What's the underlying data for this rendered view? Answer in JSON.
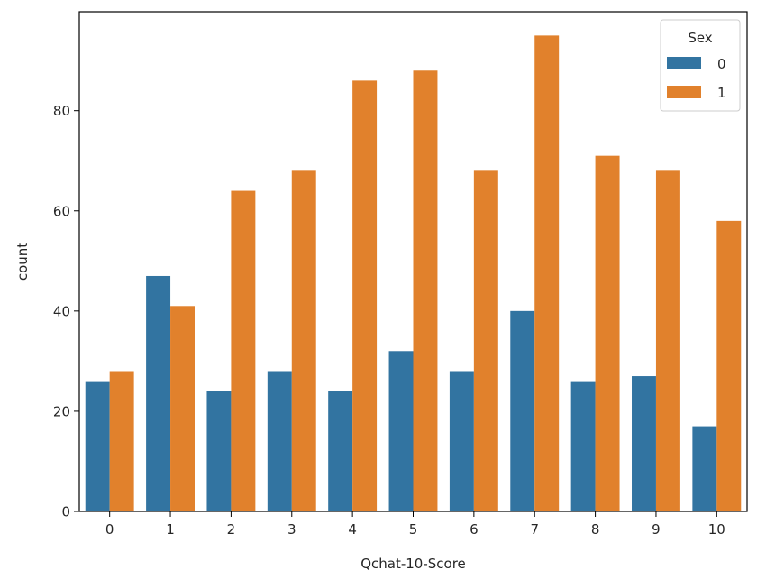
{
  "chart_data": {
    "type": "bar",
    "title": "",
    "xlabel": "Qchat-10-Score",
    "ylabel": "count",
    "categories": [
      "0",
      "1",
      "2",
      "3",
      "4",
      "5",
      "6",
      "7",
      "8",
      "9",
      "10"
    ],
    "series": [
      {
        "name": "0",
        "color": "#3274a1",
        "values": [
          26,
          47,
          24,
          28,
          24,
          32,
          28,
          40,
          26,
          27,
          17
        ]
      },
      {
        "name": "1",
        "color": "#e1812c",
        "values": [
          28,
          41,
          64,
          68,
          86,
          88,
          68,
          95,
          71,
          68,
          58
        ]
      }
    ],
    "ylim": [
      0,
      99.75
    ],
    "yticks": [
      0,
      20,
      40,
      60,
      80
    ],
    "grid": false,
    "legend": {
      "title": "Sex",
      "placement": "top-right"
    }
  }
}
